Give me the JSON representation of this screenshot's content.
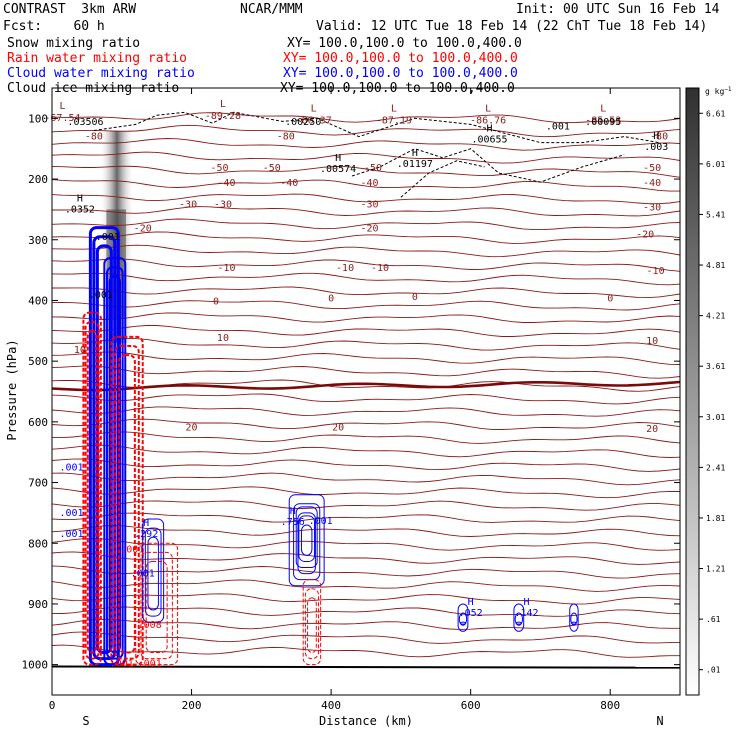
{
  "header": {
    "line1_left": "CONTRAST  3km ARW",
    "line1_center": "NCAR/MMM",
    "line1_right": "Init: 00 UTC Sun 16 Feb 14",
    "line2_left": "Fcst:    60 h",
    "line2_right": "Valid: 12 UTC Tue 18 Feb 14 (22 ChT Tue 18 Feb 14)",
    "fields": [
      {
        "name": "Snow mixing ratio",
        "xy": "XY= 100.0,100.0 to 100.0,400.0",
        "color": "#000000"
      },
      {
        "name": "Rain water mixing ratio",
        "xy": "XY= 100.0,100.0 to 100.0,400.0",
        "color": "#ff0000"
      },
      {
        "name": "Cloud water mixing ratio",
        "xy": "XY= 100.0,100.0 to 100.0,400.0",
        "color": "#0000ff"
      },
      {
        "name": "Cloud ice mixing ratio",
        "xy": "XY= 100.0,100.0 to 100.0,400.0",
        "color": "#000000"
      }
    ]
  },
  "chart_data": {
    "type": "cross-section contour",
    "xlabel": "Distance (km)",
    "ylabel": "Pressure (hPa)",
    "xlim": [
      0,
      900
    ],
    "ylim": [
      1050,
      50
    ],
    "xticks": [
      0,
      200,
      400,
      600,
      800
    ],
    "yticks": [
      100,
      200,
      300,
      400,
      500,
      600,
      700,
      800,
      900,
      1000
    ],
    "x_end_labels": {
      "left": "S",
      "right": "N"
    },
    "colorbar": {
      "unit": "g kg",
      "unit_exp": "−1",
      "ticks": [
        ".01",
        ".61",
        "1.21",
        "1.81",
        "2.41",
        "3.01",
        "3.61",
        "4.21",
        "4.81",
        "5.41",
        "6.01",
        "6.61"
      ]
    },
    "isotherm_labels": [
      {
        "x": 60,
        "p": 128,
        "text": "-80"
      },
      {
        "x": 335,
        "p": 128,
        "text": "-80"
      },
      {
        "x": 870,
        "p": 128,
        "text": "-80"
      },
      {
        "x": 240,
        "p": 180,
        "text": "-50"
      },
      {
        "x": 315,
        "p": 180,
        "text": "-50"
      },
      {
        "x": 460,
        "p": 180,
        "text": "-50"
      },
      {
        "x": 860,
        "p": 180,
        "text": "-50"
      },
      {
        "x": 250,
        "p": 205,
        "text": "-40"
      },
      {
        "x": 340,
        "p": 205,
        "text": "-40"
      },
      {
        "x": 455,
        "p": 205,
        "text": "-40"
      },
      {
        "x": 860,
        "p": 205,
        "text": "-40"
      },
      {
        "x": 195,
        "p": 240,
        "text": "-30"
      },
      {
        "x": 245,
        "p": 240,
        "text": "-30"
      },
      {
        "x": 455,
        "p": 240,
        "text": "-30"
      },
      {
        "x": 860,
        "p": 245,
        "text": "-30"
      },
      {
        "x": 130,
        "p": 280,
        "text": "-20"
      },
      {
        "x": 455,
        "p": 280,
        "text": "-20"
      },
      {
        "x": 850,
        "p": 290,
        "text": "-20"
      },
      {
        "x": 250,
        "p": 345,
        "text": "-10"
      },
      {
        "x": 420,
        "p": 345,
        "text": "-10"
      },
      {
        "x": 470,
        "p": 345,
        "text": "-10"
      },
      {
        "x": 865,
        "p": 350,
        "text": "-10"
      },
      {
        "x": 235,
        "p": 400,
        "text": "0"
      },
      {
        "x": 400,
        "p": 395,
        "text": "0"
      },
      {
        "x": 520,
        "p": 393,
        "text": "0"
      },
      {
        "x": 800,
        "p": 395,
        "text": "0"
      },
      {
        "x": 245,
        "p": 460,
        "text": "10"
      },
      {
        "x": 860,
        "p": 465,
        "text": "10"
      },
      {
        "x": 40,
        "p": 480,
        "text": "10"
      },
      {
        "x": 200,
        "p": 608,
        "text": "20"
      },
      {
        "x": 410,
        "p": 608,
        "text": "20"
      },
      {
        "x": 860,
        "p": 610,
        "text": "20"
      }
    ],
    "extrema_labels": [
      {
        "x": 15,
        "p": 88,
        "mark": "L",
        "value": "-67.54"
      },
      {
        "x": 245,
        "p": 85,
        "mark": "L",
        "value": "-89.28"
      },
      {
        "x": 375,
        "p": 92,
        "mark": "L",
        "value": "-86.37"
      },
      {
        "x": 490,
        "p": 92,
        "mark": "L",
        "value": "-87.19"
      },
      {
        "x": 625,
        "p": 92,
        "mark": "L",
        "value": "-86.76"
      },
      {
        "x": 790,
        "p": 92,
        "mark": "L",
        "value": "-85.53"
      }
    ],
    "hydrometeor_labels": [
      {
        "x": 48,
        "p": 111,
        "mark": "",
        "value": ".03506",
        "color": "#000000"
      },
      {
        "x": 360,
        "p": 111,
        "mark": "",
        "value": ".00250",
        "color": "#000000"
      },
      {
        "x": 725,
        "p": 118,
        "mark": "",
        "value": ".001",
        "color": "#000000"
      },
      {
        "x": 790,
        "p": 111,
        "mark": "",
        "value": ".00095",
        "color": "#000000"
      },
      {
        "x": 627,
        "p": 140,
        "mark": "H",
        "value": ".00655",
        "color": "#000000"
      },
      {
        "x": 866,
        "p": 152,
        "mark": "H",
        "value": ".003",
        "color": "#000000"
      },
      {
        "x": 410,
        "p": 188,
        "mark": "H",
        "value": ".00574",
        "color": "#000000"
      },
      {
        "x": 520,
        "p": 180,
        "mark": "H",
        "value": ".01197",
        "color": "#000000"
      },
      {
        "x": 40,
        "p": 255,
        "mark": "H",
        "value": ".0352",
        "color": "#000000"
      },
      {
        "x": 80,
        "p": 300,
        "mark": "",
        "value": ".001",
        "color": "#000000"
      },
      {
        "x": 70,
        "p": 396,
        "mark": "",
        "value": ".001",
        "color": "#000000"
      },
      {
        "x": 28,
        "p": 680,
        "mark": "",
        "value": ".001",
        "color": "#0000ff"
      },
      {
        "x": 28,
        "p": 755,
        "mark": "",
        "value": ".001",
        "color": "#0000ff"
      },
      {
        "x": 28,
        "p": 790,
        "mark": "",
        "value": ".001",
        "color": "#0000ff"
      },
      {
        "x": 135,
        "p": 790,
        "mark": "H",
        "value": ".292",
        "color": "#0000ff"
      },
      {
        "x": 115,
        "p": 815,
        "mark": "",
        "value": ".001",
        "color": "#ff0000"
      },
      {
        "x": 130,
        "p": 855,
        "mark": "",
        "value": ".001",
        "color": "#0000ff"
      },
      {
        "x": 140,
        "p": 940,
        "mark": "",
        "value": ".008",
        "color": "#ff0000"
      },
      {
        "x": 140,
        "p": 1003,
        "mark": "",
        "value": ".001",
        "color": "#ff0000"
      },
      {
        "x": 100,
        "p": 1003,
        "mark": "",
        "value": ".001",
        "color": "#ff0000"
      },
      {
        "x": 345,
        "p": 770,
        "mark": "H",
        "value": ".756",
        "color": "#0000ff"
      },
      {
        "x": 385,
        "p": 768,
        "mark": "",
        "value": ".001",
        "color": "#0000ff"
      },
      {
        "x": 600,
        "p": 920,
        "mark": "H",
        "value": ".052",
        "color": "#0000ff"
      },
      {
        "x": 680,
        "p": 920,
        "mark": "H",
        "value": ".142",
        "color": "#0000ff"
      }
    ]
  }
}
